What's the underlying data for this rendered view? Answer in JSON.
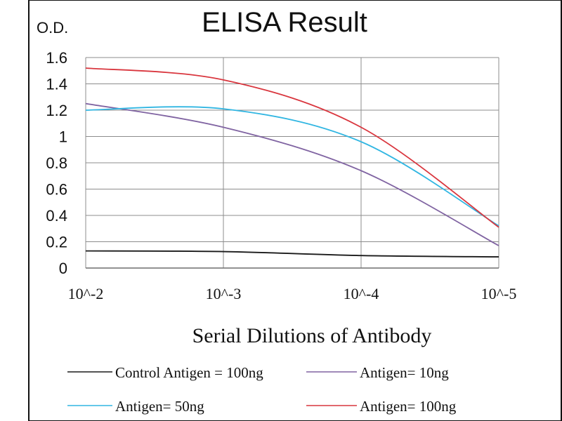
{
  "chart_data": {
    "type": "line",
    "title": "ELISA Result",
    "ylabel": "O.D.",
    "xlabel": "Serial Dilutions  of Antibody",
    "x_categories": [
      "10^-2",
      "10^-3",
      "10^-4",
      "10^-5"
    ],
    "yticks": [
      "0",
      "0.2",
      "0.4",
      "0.6",
      "0.8",
      "1",
      "1.2",
      "1.4",
      "1.6"
    ],
    "ylim": [
      0,
      1.6
    ],
    "grid": true,
    "legend_position": "bottom",
    "series": [
      {
        "name": "Control Antigen = 100ng",
        "color": "#1a1a1a",
        "values": [
          0.13,
          0.125,
          0.095,
          0.085
        ]
      },
      {
        "name": "Antigen= 10ng",
        "color": "#8064a2",
        "values": [
          1.25,
          1.07,
          0.74,
          0.17
        ]
      },
      {
        "name": "Antigen= 50ng",
        "color": "#31b6e2",
        "values": [
          1.2,
          1.21,
          0.96,
          0.32
        ]
      },
      {
        "name": "Antigen= 100ng",
        "color": "#d9363e",
        "values": [
          1.52,
          1.43,
          1.07,
          0.31
        ]
      }
    ]
  }
}
